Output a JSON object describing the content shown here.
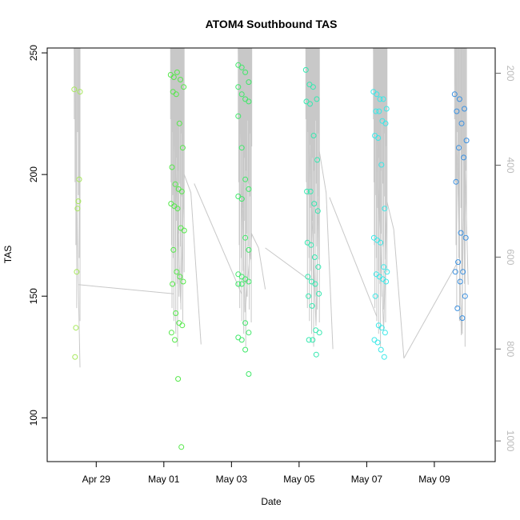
{
  "chart_data": {
    "type": "scatter",
    "title": "ATOM4 Southbound TAS",
    "xlabel": "Date",
    "ylabel": "TAS",
    "x_ticks": [
      "Apr 29",
      "May 01",
      "May 03",
      "May 05",
      "May 07",
      "May 09"
    ],
    "x_tick_days": [
      1,
      3,
      5,
      7,
      9,
      11
    ],
    "xlim_days": [
      -0.45,
      12.8
    ],
    "ylim": [
      82,
      252
    ],
    "y_ticks": [
      100,
      150,
      200,
      250
    ],
    "right_axis": {
      "lim": [
        1045,
        145
      ],
      "ticks": [
        200,
        400,
        600,
        800,
        1000
      ],
      "color": "#bbbbbb"
    },
    "secondary_line_color": "#c8c8c8",
    "right_line_segments": [
      [
        [
          0.35,
          145
        ],
        [
          0.47,
          660
        ],
        [
          0.52,
          840
        ]
      ],
      [
        [
          0.47,
          660
        ],
        [
          3.3,
          680
        ]
      ],
      [
        [
          3.2,
          145
        ],
        [
          3.5,
          700
        ],
        [
          3.6,
          420
        ],
        [
          3.8,
          460
        ],
        [
          4.1,
          790
        ]
      ],
      [
        [
          3.9,
          440
        ],
        [
          5.3,
          680
        ]
      ],
      [
        [
          5.2,
          145
        ],
        [
          5.4,
          720
        ],
        [
          5.6,
          550
        ],
        [
          5.8,
          580
        ],
        [
          6.0,
          670
        ]
      ],
      [
        [
          6.0,
          580
        ],
        [
          7.3,
          650
        ]
      ],
      [
        [
          7.2,
          145
        ],
        [
          7.5,
          750
        ],
        [
          7.6,
          370
        ],
        [
          7.8,
          460
        ],
        [
          8.0,
          800
        ]
      ],
      [
        [
          7.9,
          470
        ],
        [
          9.3,
          730
        ]
      ],
      [
        [
          9.2,
          145
        ],
        [
          9.5,
          760
        ],
        [
          9.6,
          480
        ],
        [
          9.8,
          540
        ],
        [
          10.1,
          820
        ]
      ],
      [
        [
          10.1,
          820
        ],
        [
          11.7,
          610
        ]
      ],
      [
        [
          11.6,
          145
        ],
        [
          11.8,
          770
        ],
        [
          11.9,
          380
        ],
        [
          12.0,
          660
        ]
      ]
    ],
    "point_groups": [
      {
        "color": "#a6e85a",
        "x_range": [
          0.35,
          0.52
        ],
        "y": [
          235,
          234,
          198,
          189,
          186,
          160,
          137,
          125
        ]
      },
      {
        "color": "#55e84a",
        "x_range": [
          3.2,
          3.6
        ],
        "y": [
          241,
          240,
          242,
          239,
          236,
          234,
          233,
          221,
          211,
          203,
          196,
          194,
          193,
          188,
          187,
          186,
          178,
          177,
          169,
          160,
          158,
          156,
          155,
          143,
          139,
          138,
          135,
          132,
          116,
          88
        ]
      },
      {
        "color": "#40e86a",
        "x_range": [
          5.2,
          5.6
        ],
        "y": [
          245,
          244,
          242,
          238,
          236,
          233,
          231,
          230,
          224,
          211,
          198,
          194,
          191,
          190,
          174,
          169,
          159,
          158,
          157,
          156,
          155,
          155,
          139,
          135,
          133,
          132,
          128,
          118
        ]
      },
      {
        "color": "#35e8b0",
        "x_range": [
          7.2,
          7.6
        ],
        "y": [
          243,
          237,
          236,
          231,
          230,
          229,
          216,
          206,
          193,
          193,
          188,
          185,
          172,
          171,
          166,
          162,
          158,
          156,
          155,
          151,
          150,
          146,
          136,
          135,
          132,
          132,
          126
        ]
      },
      {
        "color": "#3ae8e8",
        "x_range": [
          9.2,
          9.6
        ],
        "y": [
          234,
          233,
          231,
          231,
          227,
          226,
          226,
          222,
          221,
          216,
          215,
          204,
          186,
          174,
          173,
          172,
          162,
          160,
          159,
          158,
          157,
          156,
          150,
          138,
          137,
          135,
          132,
          131,
          128,
          125
        ]
      },
      {
        "color": "#3a90e0",
        "x_range": [
          11.6,
          11.95
        ],
        "y": [
          233,
          231,
          227,
          226,
          221,
          214,
          211,
          207,
          197,
          176,
          174,
          164,
          160,
          160,
          156,
          150,
          145,
          141
        ]
      }
    ]
  }
}
